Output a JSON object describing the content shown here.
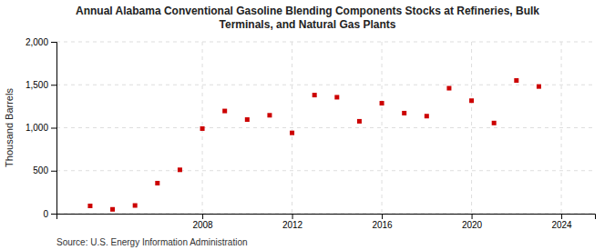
{
  "chart_data": {
    "type": "scatter",
    "title": "Annual Alabama Conventional Gasoline Blending Components Stocks at Refineries, Bulk\nTerminals, and Natural Gas Plants",
    "y_label": "Thousand Barrels",
    "source": "Source: U.S. Energy Information Administration",
    "x": [
      2003,
      2004,
      2005,
      2006,
      2007,
      2008,
      2009,
      2010,
      2011,
      2012,
      2013,
      2014,
      2015,
      2016,
      2017,
      2018,
      2019,
      2020,
      2021,
      2022,
      2023,
      2024
    ],
    "values": [
      90,
      50,
      95,
      355,
      510,
      990,
      1195,
      1095,
      1145,
      940,
      1380,
      1355,
      1075,
      1285,
      1170,
      1135,
      1460,
      1315,
      1055,
      1550,
      1480,
      null
    ],
    "color": "#cc0000",
    "marker": "square",
    "xlim": [
      2001.5,
      2025.5
    ],
    "xticks": [
      2008,
      2012,
      2016,
      2020,
      2024
    ],
    "ylim": [
      0,
      2000
    ],
    "yticks": [
      0,
      500,
      {
        "value": 1000,
        "label": "1,000"
      },
      {
        "value": 1500,
        "label": "1,500"
      },
      {
        "value": 2000,
        "label": "2,000"
      }
    ],
    "grid": true
  }
}
